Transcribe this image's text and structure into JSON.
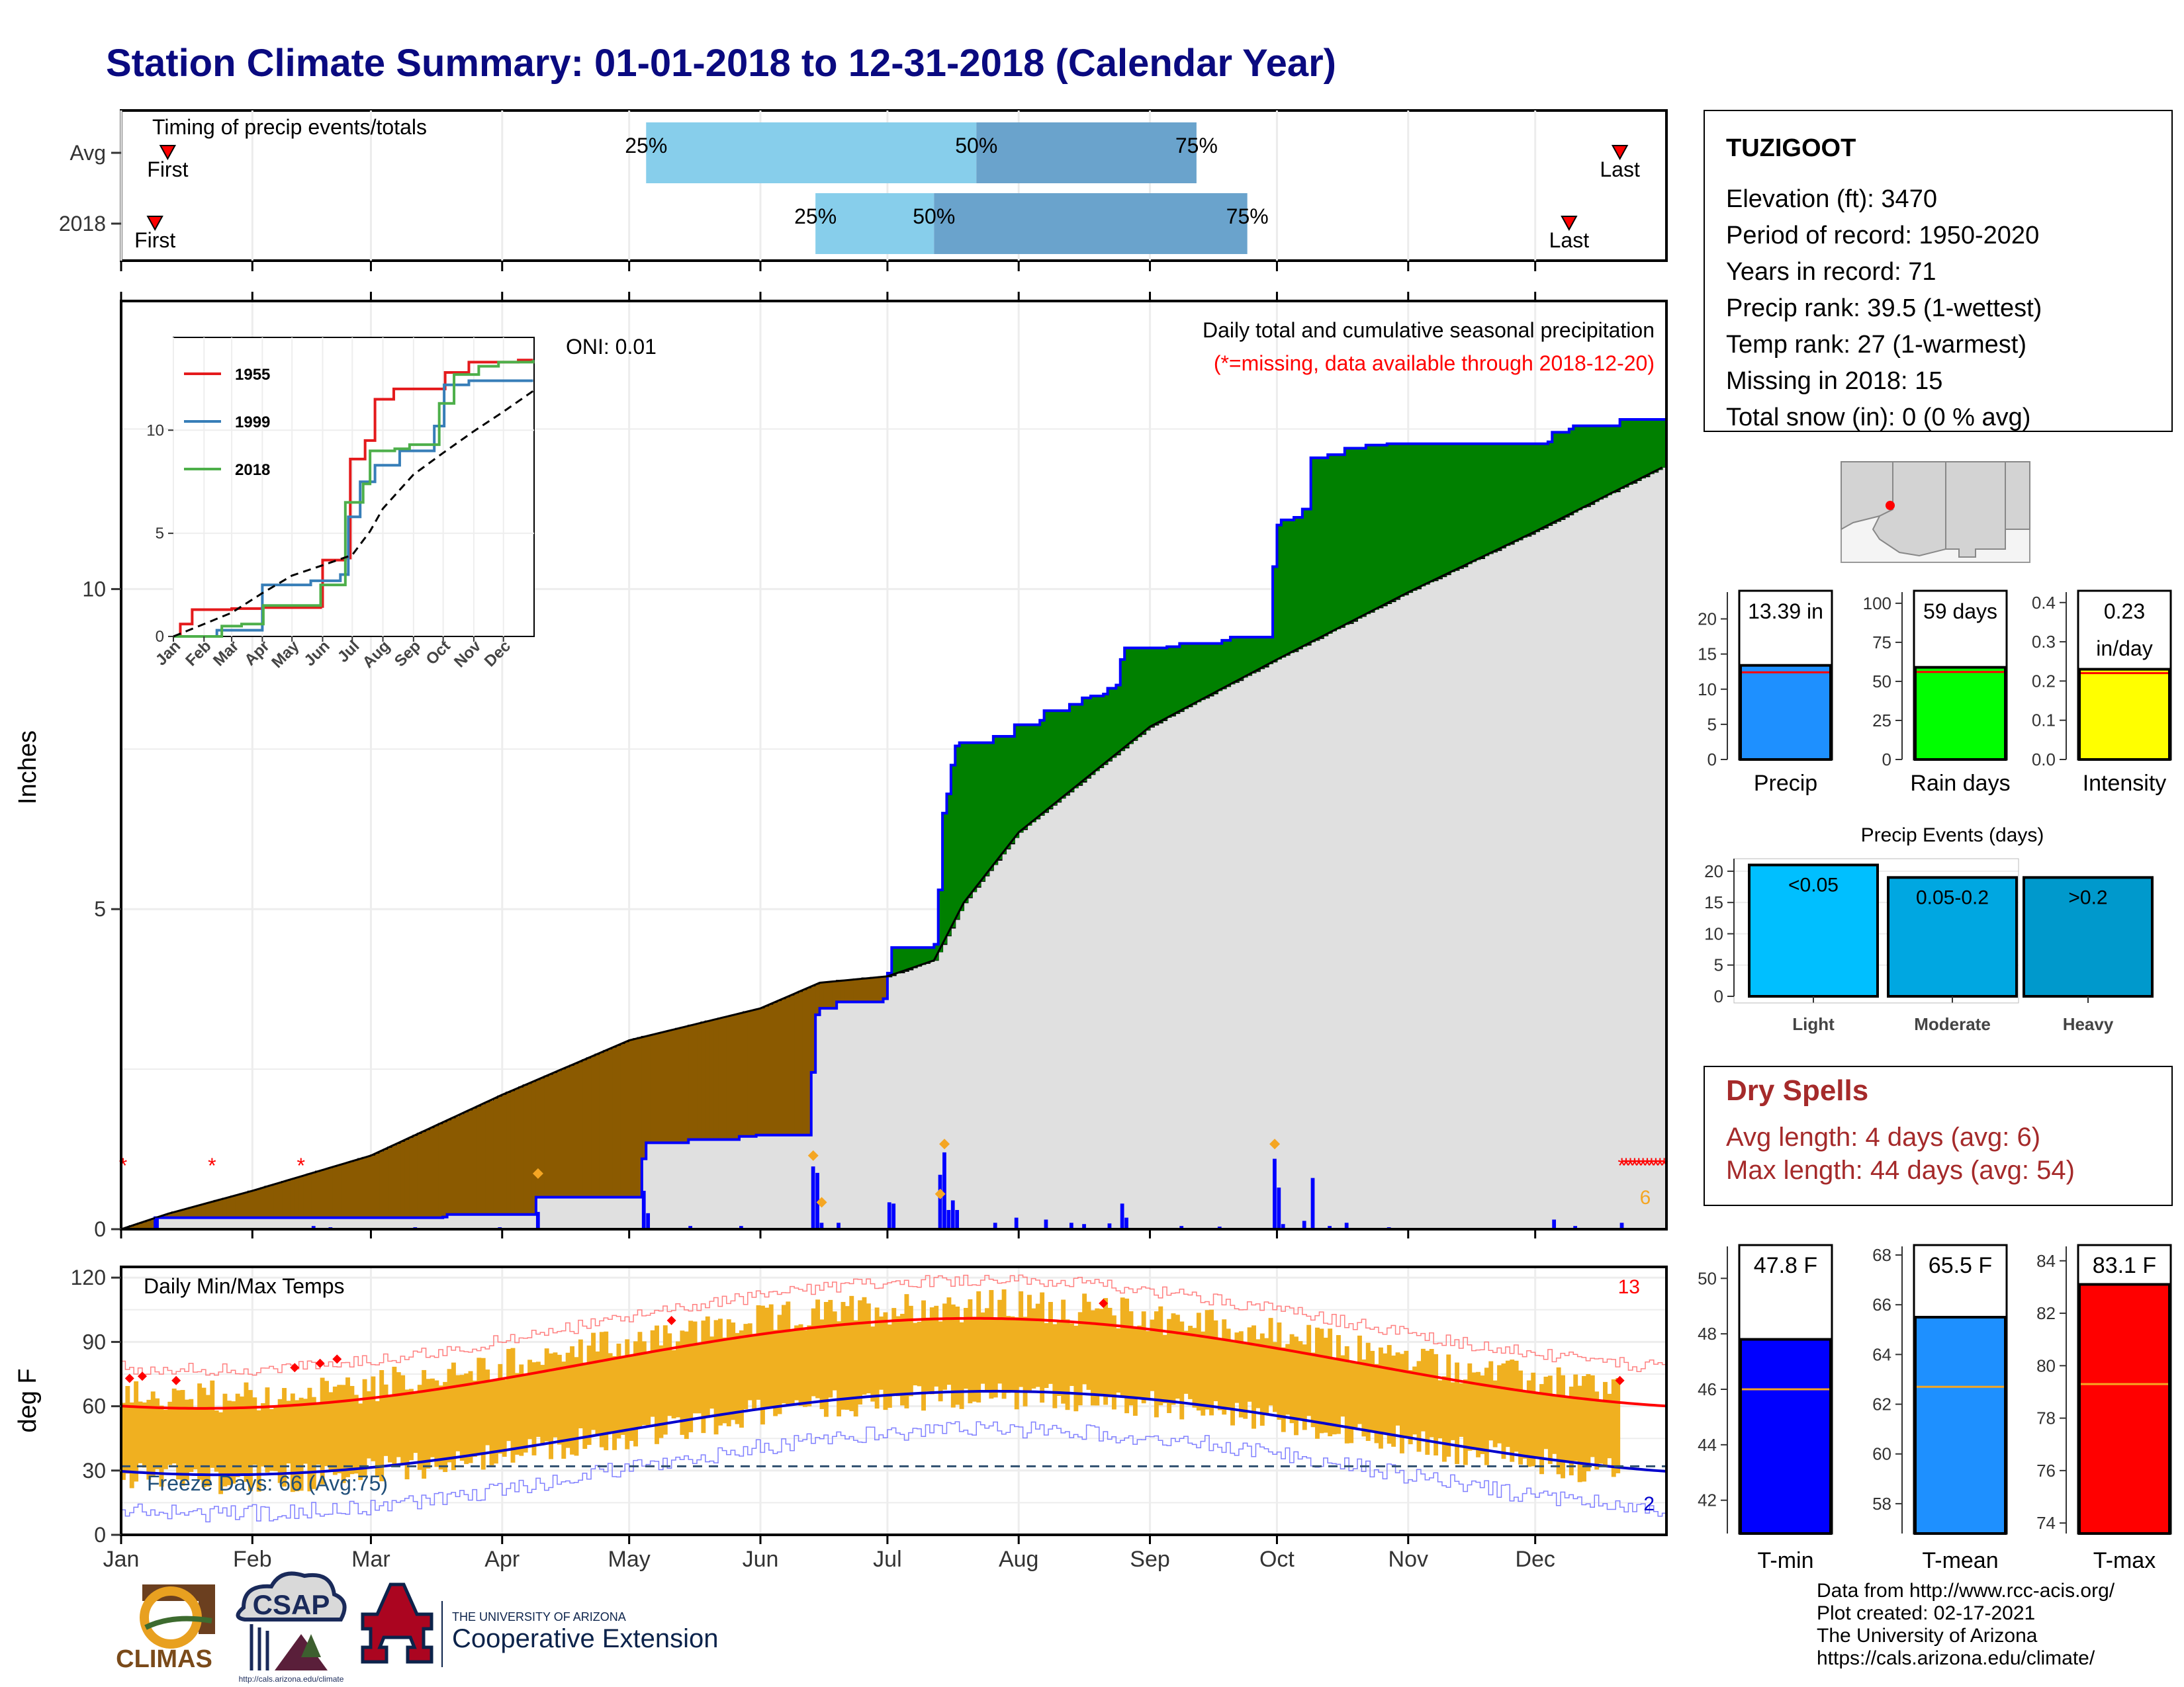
{
  "title": "Station Climate Summary: 01-01-2018 to 12-31-2018 (Calendar Year)",
  "timing_panel": {
    "label": "Timing of precip events/totals",
    "rows": [
      {
        "name": "Avg",
        "first_label": "First",
        "last_label": "Last",
        "first_doy": 12,
        "last_doy": 355,
        "p25_doy": 125,
        "p50_doy": 203,
        "p75_doy": 255,
        "p25_label": "25%",
        "p50_label": "50%",
        "p75_label": "75%"
      },
      {
        "name": "2018",
        "first_label": "First",
        "last_label": "Last",
        "first_doy": 9,
        "last_doy": 343,
        "p25_doy": 165,
        "p50_doy": 193,
        "p75_doy": 267,
        "p25_label": "25%",
        "p50_label": "50%",
        "p75_label": "75%"
      }
    ]
  },
  "precip_panel": {
    "ylabel": "Inches",
    "subtitle": "Daily total and cumulative seasonal precipitation",
    "missing_note": "(*=missing, data available through 2018-12-20)",
    "oni_label": "ONI: 0.01",
    "ylim": [
      0,
      14.5
    ],
    "yticks": [
      "0",
      "5",
      "10"
    ],
    "missing_count_label": "6",
    "colors": {
      "below_avg": "#8b5a00",
      "above_avg": "#008000",
      "observed_line": "#0000ff",
      "avg_fill": "#e0e0e0",
      "missing": "#ff0000",
      "daily_bar": "#0000ff",
      "marker": "#f5a623"
    }
  },
  "inset": {
    "yticks": [
      "0",
      "5",
      "10"
    ],
    "xticks": [
      "Jan",
      "Feb",
      "Mar",
      "Apr",
      "May",
      "Jun",
      "Jul",
      "Aug",
      "Sep",
      "Oct",
      "Nov",
      "Dec"
    ],
    "legend": [
      {
        "label": "1955",
        "color": "#e41a1c"
      },
      {
        "label": "1999",
        "color": "#377eb8"
      },
      {
        "label": "2018",
        "color": "#4daf4a"
      }
    ]
  },
  "temp_panel": {
    "ylabel": "deg F",
    "title": "Daily Min/Max Temps",
    "yticks": [
      "0",
      "30",
      "60",
      "90",
      "120"
    ],
    "ylim": [
      0,
      125
    ],
    "freeze_label": "Freeze Days: 66 (Avg:75)",
    "top_count": "13",
    "bottom_count": "2",
    "colors": {
      "range_bar": "#f0b020",
      "avg_max": "#ff0000",
      "avg_min": "#0000cc",
      "freeze_line": "#2f4f6f"
    }
  },
  "x_months": [
    "Jan",
    "Feb",
    "Mar",
    "Apr",
    "May",
    "Jun",
    "Jul",
    "Aug",
    "Sep",
    "Oct",
    "Nov",
    "Dec"
  ],
  "station_box": {
    "name": "TUZIGOOT",
    "lines": [
      "Elevation (ft): 3470",
      "Period of record: 1950-2020",
      "Years in record: 71",
      "Precip rank: 39.5 (1-wettest)",
      "Temp rank: 27 (1-warmest)",
      "Missing in 2018: 15",
      "Total snow (in): 0 (0 % avg)"
    ]
  },
  "mini_bars": [
    {
      "label": "Precip",
      "value_label": "13.39 in",
      "value": 13.39,
      "avg": 12.4,
      "ylim": [
        0,
        24
      ],
      "yticks": [
        "0",
        "5",
        "10",
        "15",
        "20"
      ],
      "color": "#1e90ff"
    },
    {
      "label": "Rain days",
      "value_label": "59 days",
      "value": 59,
      "avg": 56,
      "ylim": [
        0,
        108
      ],
      "yticks": [
        "0",
        "25",
        "50",
        "75",
        "100"
      ],
      "color": "#00ff00"
    },
    {
      "label": "Intensity",
      "value_label": "0.23\nin/day",
      "value": 0.23,
      "avg": 0.22,
      "ylim": [
        0,
        0.43
      ],
      "yticks": [
        "0.0",
        "0.1",
        "0.2",
        "0.3",
        "0.4"
      ],
      "color": "#ffff00"
    }
  ],
  "precip_events": {
    "title": "Precip Events (days)",
    "yticks": [
      "0",
      "5",
      "10",
      "15",
      "20"
    ],
    "ylim": [
      0,
      22
    ],
    "bars": [
      {
        "category": "Light",
        "label": "<0.05",
        "value": 21,
        "color": "#00bfff"
      },
      {
        "category": "Moderate",
        "label": "0.05-0.2",
        "value": 19,
        "color": "#00a7e1"
      },
      {
        "category": "Heavy",
        "label": ">0.2",
        "value": 19,
        "color": "#0099cc"
      }
    ]
  },
  "dry_spells": {
    "title": "Dry Spells",
    "avg_line": "Avg length: 4 days (avg: 6)",
    "max_line": "Max length: 44 days (avg: 54)"
  },
  "temp_bars": [
    {
      "label": "T-min",
      "value_label": "47.8 F",
      "value": 47.8,
      "avg": 46.0,
      "ylim": [
        40.8,
        51.2
      ],
      "yticks": [
        "42",
        "44",
        "46",
        "48",
        "50"
      ],
      "color": "#0000ff"
    },
    {
      "label": "T-mean",
      "value_label": "65.5 F",
      "value": 65.5,
      "avg": 62.7,
      "ylim": [
        56.8,
        68.4
      ],
      "yticks": [
        "58",
        "60",
        "62",
        "64",
        "66",
        "68"
      ],
      "color": "#1e90ff"
    },
    {
      "label": "T-max",
      "value_label": "83.1 F",
      "value": 83.1,
      "avg": 79.3,
      "ylim": [
        73.6,
        84.6
      ],
      "yticks": [
        "74",
        "76",
        "78",
        "80",
        "82",
        "84"
      ],
      "color": "#ff0000"
    }
  ],
  "logos": {
    "climas": "CLIMAS",
    "csap": "CSAP",
    "csap_url": "http://cals.arizona.edu/climate",
    "ua_small": "THE UNIVERSITY OF ARIZONA",
    "ua_big": "Cooperative Extension"
  },
  "footer": {
    "lines": [
      "Data from http://www.rcc-acis.org/",
      "Plot created: 02-17-2021",
      "The University of Arizona",
      "https://cals.arizona.edu/climate/"
    ]
  }
}
